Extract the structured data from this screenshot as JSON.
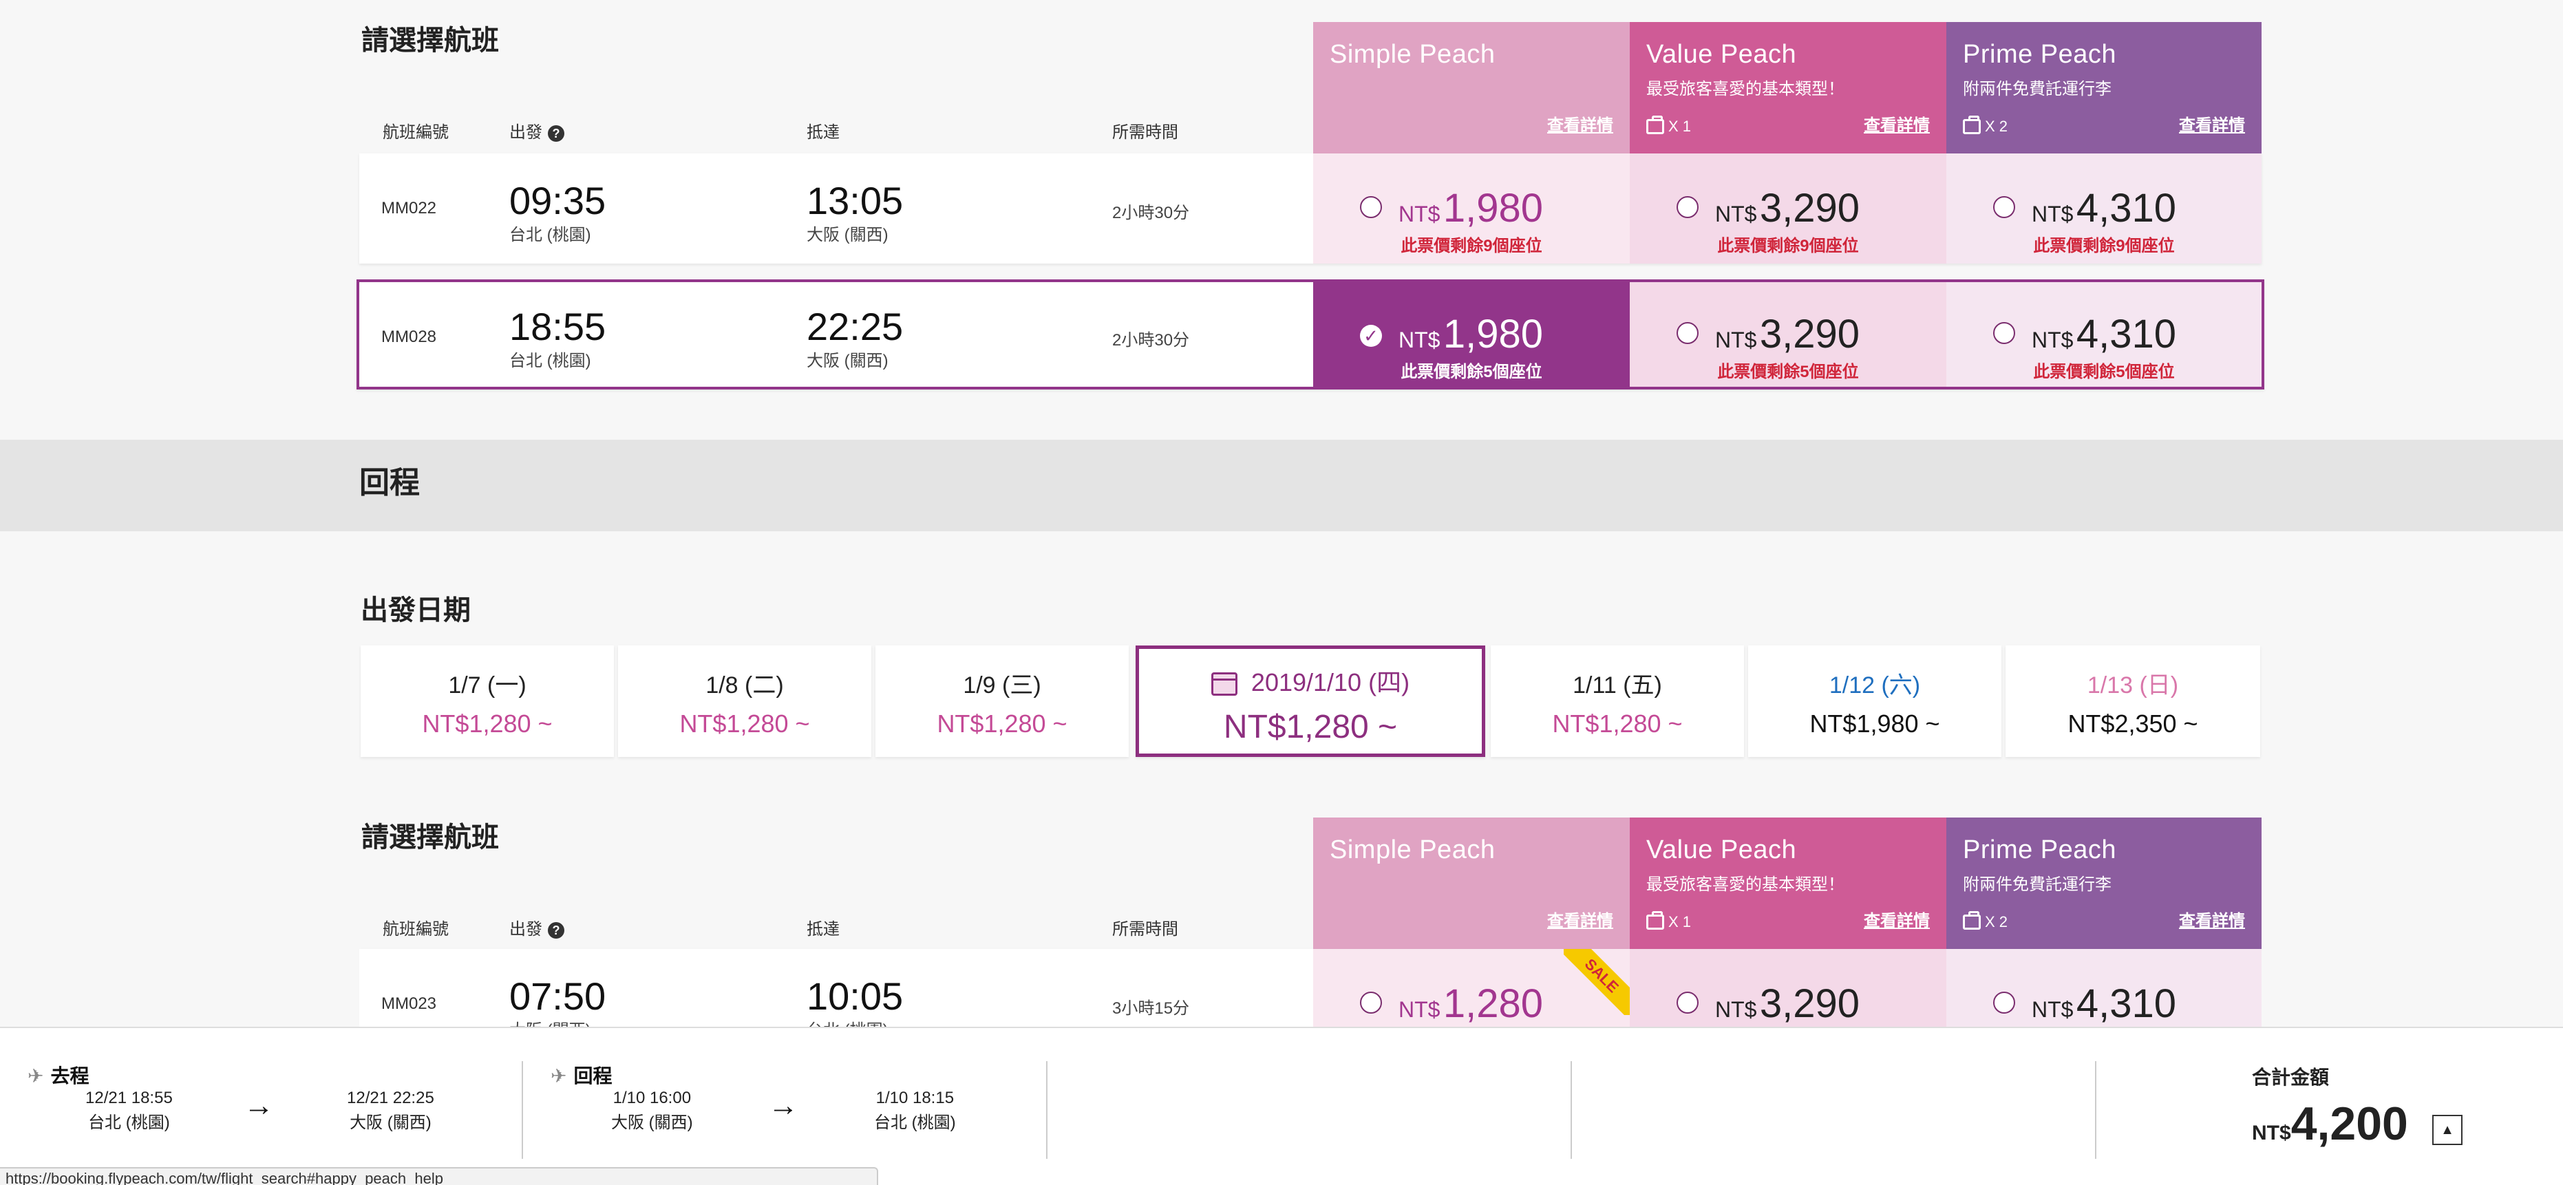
{
  "outbound": {
    "section_title": "請選擇航班",
    "columns": {
      "flight_no": "航班編號",
      "depart": "出發",
      "arrive": "抵達",
      "duration": "所需時間"
    },
    "help_glyph": "?",
    "fares": [
      {
        "name": "Simple Peach",
        "sub": "",
        "bag": "",
        "detail": "查看詳情"
      },
      {
        "name": "Value Peach",
        "sub": "最受旅客喜愛的基本類型！",
        "bag": "X 1",
        "detail": "查看詳情"
      },
      {
        "name": "Prime Peach",
        "sub": "附兩件免費託運行李",
        "bag": "X 2",
        "detail": "查看詳情"
      }
    ],
    "flights": [
      {
        "no": "MM022",
        "dep_time": "09:35",
        "dep_port": "台北 (桃園)",
        "arr_time": "13:05",
        "arr_port": "大阪 (關西)",
        "duration": "2小時30分",
        "prices": [
          {
            "cur": "NT$",
            "amt": "1,980",
            "seats": "此票價剩餘9個座位"
          },
          {
            "cur": "NT$",
            "amt": "3,290",
            "seats": "此票價剩餘9個座位"
          },
          {
            "cur": "NT$",
            "amt": "4,310",
            "seats": "此票價剩餘9個座位"
          }
        ]
      },
      {
        "no": "MM028",
        "dep_time": "18:55",
        "dep_port": "台北 (桃園)",
        "arr_time": "22:25",
        "arr_port": "大阪 (關西)",
        "duration": "2小時30分",
        "prices": [
          {
            "cur": "NT$",
            "amt": "1,980",
            "seats": "此票價剩餘5個座位"
          },
          {
            "cur": "NT$",
            "amt": "3,290",
            "seats": "此票價剩餘5個座位"
          },
          {
            "cur": "NT$",
            "amt": "4,310",
            "seats": "此票價剩餘5個座位"
          }
        ]
      }
    ]
  },
  "return_band": {
    "title": "回程"
  },
  "dates": {
    "title": "出發日期",
    "items": [
      {
        "date": "1/7 (一)",
        "price": "NT$1,280 ~"
      },
      {
        "date": "1/8 (二)",
        "price": "NT$1,280 ~"
      },
      {
        "date": "1/9 (三)",
        "price": "NT$1,280 ~"
      },
      {
        "date": "2019/1/10 (四)",
        "price": "NT$1,280 ~"
      },
      {
        "date": "1/11 (五)",
        "price": "NT$1,280 ~"
      },
      {
        "date": "1/12 (六)",
        "price": "NT$1,980 ~"
      },
      {
        "date": "1/13 (日)",
        "price": "NT$2,350 ~"
      }
    ],
    "colors": {
      "saturday": "#1f6fbf",
      "sunday": "#d977aa",
      "weekend_price": "#111111"
    }
  },
  "inbound": {
    "section_title": "請選擇航班",
    "columns": {
      "flight_no": "航班編號",
      "depart": "出發",
      "arrive": "抵達",
      "duration": "所需時間"
    },
    "help_glyph": "?",
    "fares": [
      {
        "name": "Simple Peach",
        "sub": "",
        "bag": "",
        "detail": "查看詳情"
      },
      {
        "name": "Value Peach",
        "sub": "最受旅客喜愛的基本類型！",
        "bag": "X 1",
        "detail": "查看詳情"
      },
      {
        "name": "Prime Peach",
        "sub": "附兩件免費託運行李",
        "bag": "X 2",
        "detail": "查看詳情"
      }
    ],
    "flight": {
      "no": "MM023",
      "dep_time": "07:50",
      "dep_port": "大阪 (關西)",
      "arr_time": "10:05",
      "arr_port": "台北 (桃園)",
      "duration": "3小時15分",
      "sale": "SALE",
      "prices": [
        {
          "cur": "NT$",
          "amt": "1,280"
        },
        {
          "cur": "NT$",
          "amt": "3,290"
        },
        {
          "cur": "NT$",
          "amt": "4,310"
        }
      ]
    }
  },
  "footer": {
    "outbound": {
      "label": "去程",
      "dep": "12/21 18:55",
      "dep_port": "台北 (桃園)",
      "arr": "12/21 22:25",
      "arr_port": "大阪 (關西)"
    },
    "return": {
      "label": "回程",
      "dep": "1/10 16:00",
      "dep_port": "大阪 (關西)",
      "arr": "1/10 18:15",
      "arr_port": "台北 (桃園)"
    },
    "arrow": "→",
    "plane": "✈",
    "total_label": "合計金額",
    "total_cur": "NT$",
    "total_amt": "4,200",
    "toggle": "▲"
  },
  "status_url": "https://booking.flypeach.com/tw/flight_search#happy_peach_help"
}
